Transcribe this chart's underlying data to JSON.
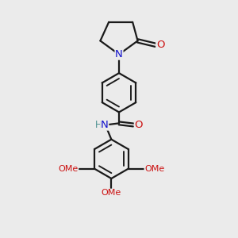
{
  "bg_color": "#ebebeb",
  "bond_color": "#1a1a1a",
  "bond_width": 1.6,
  "N_color": "#1010cc",
  "O_color": "#cc1010",
  "H_color": "#4a9090",
  "font_size": 8.5,
  "fig_width": 3.0,
  "fig_height": 3.0,
  "dpi": 100,
  "xlim": [
    0,
    10
  ],
  "ylim": [
    0,
    14
  ]
}
